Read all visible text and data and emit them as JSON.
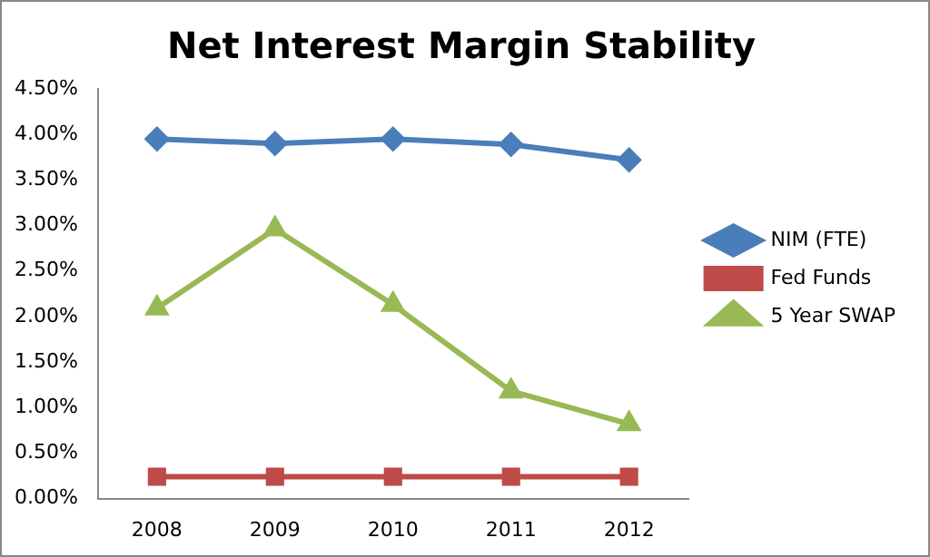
{
  "chart_data": {
    "type": "line",
    "title": "Net Interest Margin Stability",
    "categories": [
      "2008",
      "2009",
      "2010",
      "2011",
      "2012"
    ],
    "series": [
      {
        "name": "NIM (FTE)",
        "color": "#4a7ebb",
        "marker": "diamond",
        "values": [
          3.95,
          3.9,
          3.95,
          3.89,
          3.72
        ]
      },
      {
        "name": "Fed Funds",
        "color": "#be4b48",
        "marker": "square",
        "values": [
          0.24,
          0.24,
          0.24,
          0.24,
          0.24
        ]
      },
      {
        "name": "5 Year SWAP",
        "color": "#98b954",
        "marker": "triangle",
        "values": [
          2.09,
          2.96,
          2.13,
          1.18,
          0.82
        ]
      }
    ],
    "ylim": [
      0,
      4.5
    ],
    "yticks": [
      {
        "value": 0,
        "label": "0.00%"
      },
      {
        "value": 0.5,
        "label": "0.50%"
      },
      {
        "value": 1,
        "label": "1.00%"
      },
      {
        "value": 1.5,
        "label": "1.50%"
      },
      {
        "value": 2,
        "label": "2.00%"
      },
      {
        "value": 2.5,
        "label": "2.50%"
      },
      {
        "value": 3,
        "label": "3.00%"
      },
      {
        "value": 3.5,
        "label": "3.50%"
      },
      {
        "value": 4,
        "label": "4.00%"
      },
      {
        "value": 4.5,
        "label": "4.50%"
      }
    ],
    "grid": false,
    "legend": "right"
  }
}
